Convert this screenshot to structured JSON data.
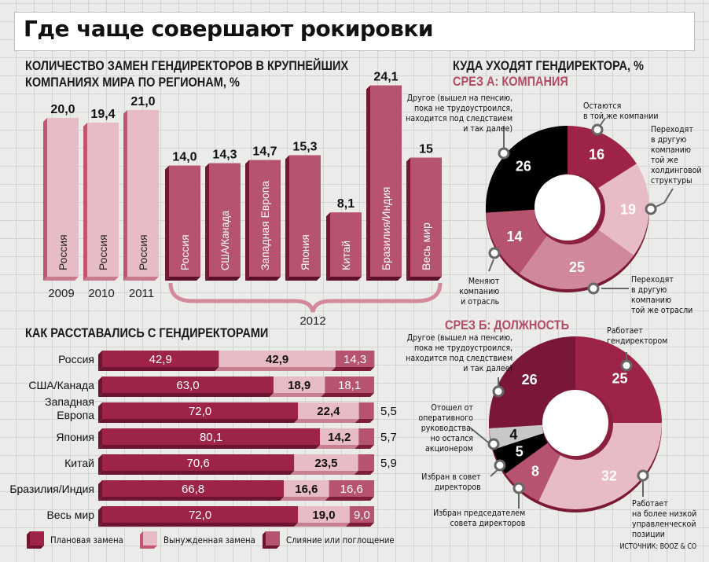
{
  "title": "Где чаще совершают рокировки",
  "colors": {
    "planned": "#9e2349",
    "planned_dark": "#6c1431",
    "forced": "#e8bcc6",
    "forced_dark": "#c7808f",
    "merger": "#b6536f",
    "merger_dark": "#7d1d3a",
    "pink_bar": "#e8bcc6",
    "pink_bar_side": "#c0566f",
    "region_bar": "#b6536f",
    "region_bar_side": "#741634",
    "black": "#000000",
    "grey": "#c8c8c8",
    "accent_text": "#b34a6a"
  },
  "chart_data": [
    {
      "type": "bar",
      "title": "КОЛИЧЕСТВО ЗАМЕН ГЕНДИРЕКТОРОВ В КРУПНЕЙШИХ КОМПАНИЯХ МИРА ПО РЕГИОНАМ, %",
      "title_lines": [
        "КОЛИЧЕСТВО ЗАМЕН ГЕНДИРЕКТОРОВ В КРУПНЕЙШИХ",
        "КОМПАНИЯХ МИРА ПО РЕГИОНАМ, %"
      ],
      "ylim": [
        0,
        25
      ],
      "bars": [
        {
          "category": "Россия",
          "year": "2009",
          "value": 20.0,
          "label": "20,0",
          "group": "history"
        },
        {
          "category": "Россия",
          "year": "2010",
          "value": 19.4,
          "label": "19,4",
          "group": "history"
        },
        {
          "category": "Россия",
          "year": "2011",
          "value": 21.0,
          "label": "21,0",
          "group": "history"
        },
        {
          "category": "Россия",
          "year": "2012",
          "value": 14.0,
          "label": "14,0",
          "group": "2012"
        },
        {
          "category": "США/Канада",
          "year": "2012",
          "value": 14.3,
          "label": "14,3",
          "group": "2012"
        },
        {
          "category": "Западная Европа",
          "year": "2012",
          "value": 14.7,
          "label": "14,7",
          "group": "2012"
        },
        {
          "category": "Япония",
          "year": "2012",
          "value": 15.3,
          "label": "15,3",
          "group": "2012"
        },
        {
          "category": "Китай",
          "year": "2012",
          "value": 8.1,
          "label": "8,1",
          "group": "2012"
        },
        {
          "category": "Бразилия/Индия",
          "year": "2012",
          "value": 24.1,
          "label": "24,1",
          "group": "2012"
        },
        {
          "category": "Весь мир",
          "year": "2012",
          "value": 15,
          "label": "15",
          "group": "2012"
        }
      ],
      "year_labels": [
        "2009",
        "2010",
        "2011"
      ],
      "group_label": "2012"
    },
    {
      "type": "bar",
      "orientation": "horizontal-stacked",
      "title": "КАК РАССТАВАЛИСЬ С ГЕНДИРЕКТОРАМИ",
      "xlim": [
        0,
        100
      ],
      "categories": [
        "Россия",
        "США/Канада",
        "Западная Европа",
        "Япония",
        "Китай",
        "Бразилия/Индия",
        "Весь мир"
      ],
      "category_lines": [
        [
          "Россия"
        ],
        [
          "США/Канада"
        ],
        [
          "Западная",
          "Европа"
        ],
        [
          "Япония"
        ],
        [
          "Китай"
        ],
        [
          "Бразилия/Индия"
        ],
        [
          "Весь мир"
        ]
      ],
      "series": [
        {
          "name": "Плановая замена",
          "values": [
            42.9,
            63.0,
            72.0,
            80.1,
            70.6,
            66.8,
            72.0
          ],
          "labels": [
            "42,9",
            "63,0",
            "72,0",
            "80,1",
            "70,6",
            "66,8",
            "72,0"
          ]
        },
        {
          "name": "Вынужденная замена",
          "values": [
            42.9,
            18.9,
            22.4,
            14.2,
            23.5,
            16.6,
            19.0
          ],
          "labels": [
            "42,9",
            "18,9",
            "22,4",
            "14,2",
            "23,5",
            "16,6",
            "19,0"
          ]
        },
        {
          "name": "Слияние или поглощение",
          "values": [
            14.3,
            18.1,
            5.5,
            5.7,
            5.9,
            16.6,
            9.0
          ],
          "labels": [
            "14,3",
            "18,1",
            "5,5",
            "5,7",
            "5,9",
            "16,6",
            "9,0"
          ]
        }
      ],
      "legend_position": "bottom"
    },
    {
      "type": "pie",
      "variant": "donut",
      "title": "КУДА УХОДЯТ ГЕНДИРЕКТОРА, %",
      "subtitle": "СРЕЗ А: КОМПАНИЯ",
      "slices": [
        {
          "value": 16,
          "label": "16",
          "name": "Остаются в той же компании",
          "note": [
            "Остаются",
            "в той же компании"
          ]
        },
        {
          "value": 19,
          "label": "19",
          "name": "Переходят в другую компанию той же холдинговой структуры",
          "note": [
            "Переходят",
            "в другую",
            "компанию",
            "той же",
            "холдинговой",
            "структуры"
          ]
        },
        {
          "value": 25,
          "label": "25",
          "name": "Переходят в другую компанию той же отрасли",
          "note": [
            "Переходят",
            "в другую",
            "компанию",
            "той же отрасли"
          ]
        },
        {
          "value": 14,
          "label": "14",
          "name": "Меняют компанию и отрасль",
          "note": [
            "Меняют",
            "компанию",
            "и отрасль"
          ]
        },
        {
          "value": 26,
          "label": "26",
          "name": "Другое (вышел на пенсию, пока не трудоустроился, находится под следствием и так далее)",
          "note": [
            "Другое (вышел на пенсию,",
            "пока не трудоустроился,",
            "находится под следствием",
            "и так далее)"
          ]
        }
      ]
    },
    {
      "type": "pie",
      "variant": "donut",
      "subtitle": "СРЕЗ Б: ДОЛЖНОСТЬ",
      "slices": [
        {
          "value": 25,
          "label": "25",
          "name": "Работает гендиректором",
          "note": [
            "Работает",
            "гендиректором"
          ]
        },
        {
          "value": 32,
          "label": "32",
          "name": "Работает на более низкой управленческой позиции",
          "note": [
            "Работает",
            "на более низкой",
            "управленческой",
            "позиции"
          ]
        },
        {
          "value": 8,
          "label": "8",
          "name": "Избран председателем совета директоров",
          "note": [
            "Избран председателем",
            "совета директоров"
          ]
        },
        {
          "value": 5,
          "label": "5",
          "name": "Избран в совет директоров",
          "note": [
            "Избран в совет",
            "директоров"
          ]
        },
        {
          "value": 4,
          "label": "4",
          "name": "Отошел от оперативного руководства, но остался акционером",
          "note": [
            "Отошел от",
            "оперативного",
            "руководства,",
            "но остался",
            "акционером"
          ]
        },
        {
          "value": 26,
          "label": "26",
          "name": "Другое (вышел на пенсию, пока не трудоустроился, находится под следствием и так далее)",
          "note": [
            "Другое (вышел на пенсию,",
            "пока не трудоустроился,",
            "находится под следствием",
            "и так далее)"
          ]
        }
      ]
    }
  ],
  "source": "ИСТОЧНИК: BOOZ & CO"
}
